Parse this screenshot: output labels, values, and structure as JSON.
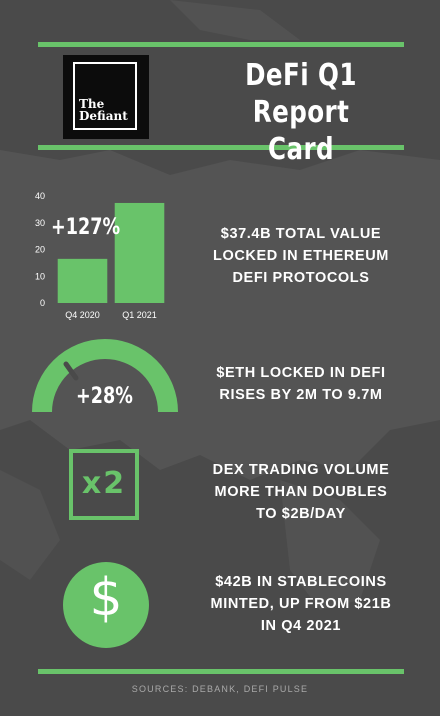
{
  "header": {
    "logo_line1": "The",
    "logo_line2": "Defiant",
    "title_line1": "DeFi Q1",
    "title_line2": "Report Card"
  },
  "chart_data": {
    "type": "bar",
    "categories": [
      "Q4 2020",
      "Q1 2021"
    ],
    "values": [
      16.5,
      37.4
    ],
    "ylim": [
      0,
      40
    ],
    "yticks": [
      0,
      10,
      20,
      30,
      40
    ],
    "annotation": "+127%",
    "bar_color": "#69c36a"
  },
  "stats": {
    "tvl": [
      "$37.4B TOTAL VALUE",
      "LOCKED IN ETHEREUM",
      "DEFI PROTOCOLS"
    ],
    "eth": [
      "$ETH LOCKED IN DEFI",
      "RISES BY 2M TO 9.7M"
    ],
    "dex": [
      "DEX TRADING VOLUME",
      "MORE THAN DOUBLES",
      "TO $2B/DAY"
    ],
    "stable": [
      "$42B IN STABLECOINS",
      "MINTED, UP FROM $21B",
      "IN Q4 2021"
    ]
  },
  "gauge": {
    "label": "+28%",
    "color": "#69c36a"
  },
  "multiplier": {
    "label": "x2",
    "icon": "x2-box-icon"
  },
  "stablecoin_icon": {
    "symbol": "$",
    "icon": "dollar-circle-icon"
  },
  "footer": {
    "sources": "SOURCES: DEBANK, DEFI PULSE"
  },
  "colors": {
    "accent": "#69c36a",
    "background": "#4a4a4a"
  }
}
